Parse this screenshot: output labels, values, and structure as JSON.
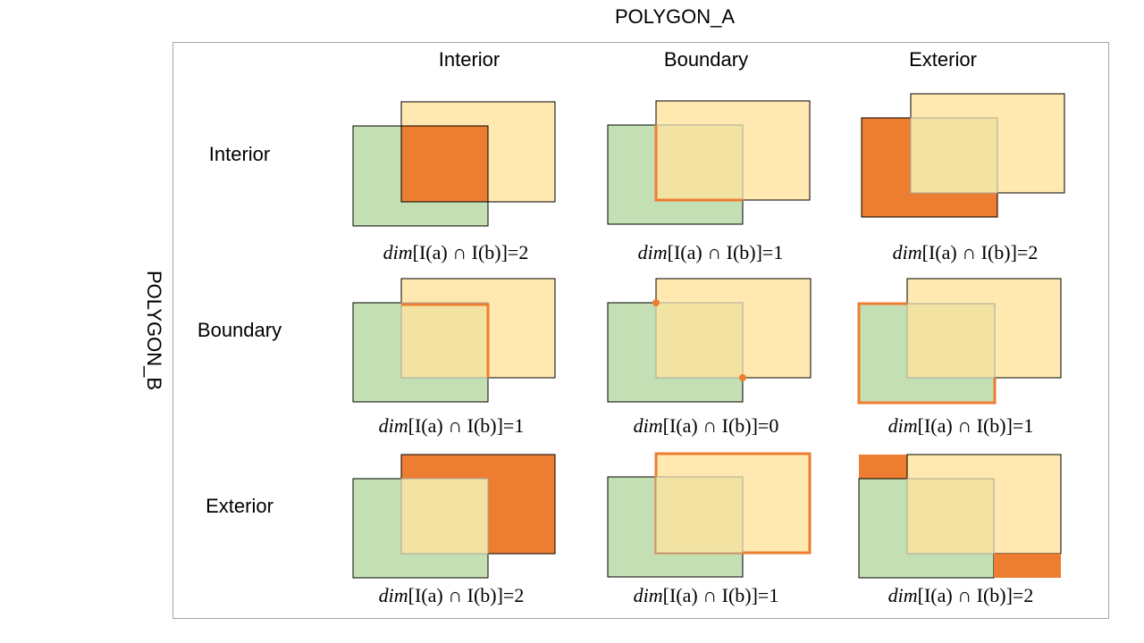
{
  "title_top": "POLYGON_A",
  "title_side": "POLYGON_B",
  "columns": [
    "Interior",
    "Boundary",
    "Exterior"
  ],
  "rows": [
    "Interior",
    "Boundary",
    "Exterior"
  ],
  "formula_prefix": "dim",
  "formulas": [
    [
      "[I(a) ∩ I(b)]=2",
      "[I(a) ∩ I(b)]=1",
      "[I(a) ∩ I(b)]=2"
    ],
    [
      "[I(a) ∩ I(b)]=1",
      "[I(a) ∩ I(b)]=0",
      "[I(a) ∩ I(b)]=1"
    ],
    [
      "[I(a) ∩ I(b)]=2",
      "[I(a) ∩ I(b)]=1",
      "[I(a) ∩ I(b)]=2"
    ]
  ],
  "colors": {
    "polygon_a_fill": "#ffe9b0",
    "polygon_b_fill": "#c5dfb4",
    "overlap_fill": "#f3e3a2",
    "highlight": "#ed7d31",
    "outline": "#000000",
    "frame": "#a6a6a6"
  }
}
